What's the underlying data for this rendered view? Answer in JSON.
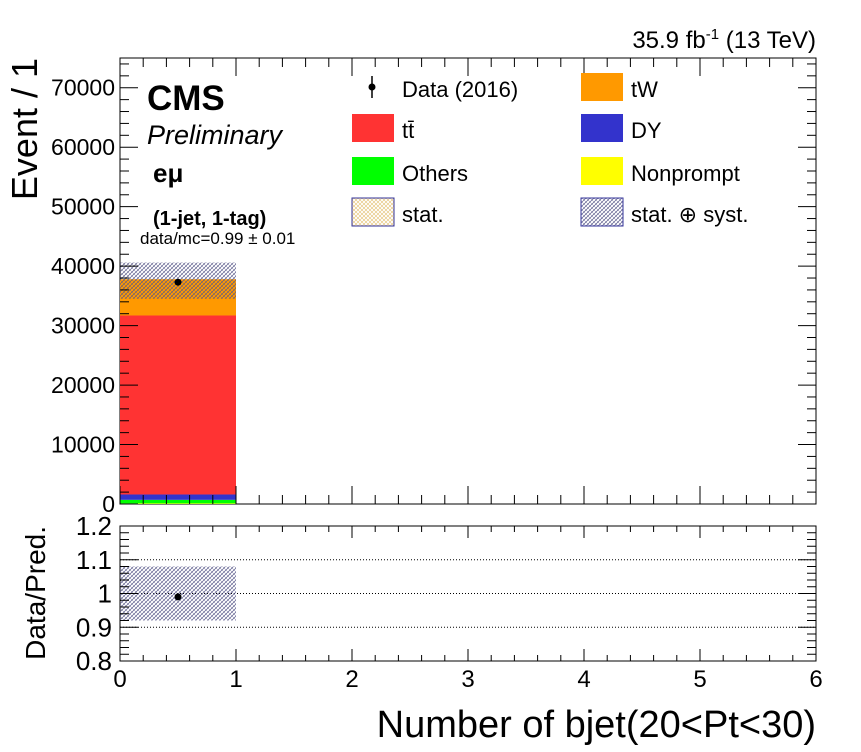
{
  "header": {
    "lumi_base": "35.9 fb",
    "lumi_sup": "-1",
    "lumi_tail": " (13 TeV)"
  },
  "labels": {
    "cms": "CMS",
    "preliminary": "Preliminary",
    "channel": "eμ",
    "selection": "(1-jet, 1-tag)",
    "ratio_note": "data/mc=0.99 ± 0.01"
  },
  "legend": [
    {
      "label": "Data (2016)",
      "kind": "marker",
      "color": "#000000"
    },
    {
      "label": "tW",
      "kind": "fill",
      "color": "#ff9900"
    },
    {
      "label": "tt̄",
      "kind": "fill",
      "color": "#ff3333"
    },
    {
      "label": "DY",
      "kind": "fill",
      "color": "#3333cc"
    },
    {
      "label": "Others",
      "kind": "fill",
      "color": "#00ff00"
    },
    {
      "label": "Nonprompt",
      "kind": "fill",
      "color": "#ffff00"
    },
    {
      "label": "stat.",
      "kind": "hatch",
      "color": "#e8c878"
    },
    {
      "label": "stat. ⊕ syst.",
      "kind": "hatch",
      "color": "#6a6a9a"
    }
  ],
  "chart_data": [
    {
      "type": "bar",
      "stacked": true,
      "x_bins": [
        [
          0,
          1
        ]
      ],
      "series": [
        {
          "name": "Nonprompt",
          "color": "#ffff00",
          "values": [
            100
          ]
        },
        {
          "name": "Others",
          "color": "#00ff00",
          "values": [
            600
          ]
        },
        {
          "name": "DY",
          "color": "#3333cc",
          "values": [
            900
          ]
        },
        {
          "name": "tt̄",
          "color": "#ff3333",
          "values": [
            30100
          ]
        },
        {
          "name": "tW",
          "color": "#ff9900",
          "values": [
            6100
          ]
        }
      ],
      "data": {
        "name": "Data (2016)",
        "x": [
          0.5
        ],
        "y": [
          37300
        ]
      },
      "uncertainty_band": {
        "name": "stat. ⊕ syst.",
        "low": [
          34500
        ],
        "high": [
          40600
        ]
      },
      "xlabel": "",
      "ylabel": "Event / 1",
      "xlim": [
        0,
        6
      ],
      "ylim": [
        0,
        75000
      ],
      "y_ticks": [
        0,
        10000,
        20000,
        30000,
        40000,
        50000,
        60000,
        70000
      ]
    },
    {
      "type": "scatter",
      "x": [
        0.5
      ],
      "y": [
        0.99
      ],
      "uncertainty_band": {
        "low": [
          0.92
        ],
        "high": [
          1.08
        ],
        "x_bins": [
          [
            0,
            1
          ]
        ]
      },
      "xlabel": "Number of bjet(20<Pt<30)",
      "ylabel": "Data/Pred.",
      "xlim": [
        0,
        6
      ],
      "ylim": [
        0.8,
        1.2
      ],
      "y_ticks": [
        0.8,
        0.9,
        1,
        1.1,
        1.2
      ],
      "x_ticks": [
        0,
        1,
        2,
        3,
        4,
        5,
        6
      ],
      "grid_lines_y": [
        0.9,
        1,
        1.1
      ]
    }
  ]
}
